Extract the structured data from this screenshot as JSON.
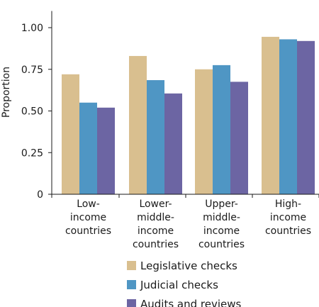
{
  "chart_data": {
    "type": "bar",
    "title": "",
    "xlabel": "",
    "ylabel": "Proportion",
    "ylim": [
      0,
      1.1
    ],
    "yticks": [
      "0",
      "0.25",
      "0.50",
      "0.75",
      "1.00"
    ],
    "ytick_values": [
      0,
      0.25,
      0.5,
      0.75,
      1.0
    ],
    "grid": false,
    "legend_position": "bottom",
    "categories": [
      [
        "Low-",
        "income",
        "countries"
      ],
      [
        "Lower-",
        "middle-",
        "income",
        "countries"
      ],
      [
        "Upper-",
        "middle-",
        "income",
        "countries"
      ],
      [
        "High-",
        "income",
        "countries"
      ]
    ],
    "series": [
      {
        "name": "Legislative checks",
        "color": "#d9bf8f",
        "values": [
          0.72,
          0.83,
          0.75,
          0.945
        ]
      },
      {
        "name": "Judicial checks",
        "color": "#4f96c4",
        "values": [
          0.55,
          0.685,
          0.775,
          0.93
        ]
      },
      {
        "name": "Audits and reviews",
        "color": "#6c65a3",
        "values": [
          0.52,
          0.605,
          0.675,
          0.92
        ]
      }
    ]
  }
}
